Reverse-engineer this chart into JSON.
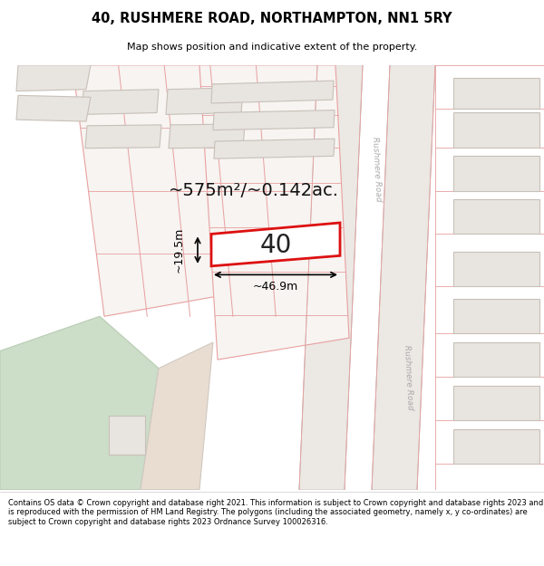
{
  "title": "40, RUSHMERE ROAD, NORTHAMPTON, NN1 5RY",
  "subtitle": "Map shows position and indicative extent of the property.",
  "footer": "Contains OS data © Crown copyright and database right 2021. This information is subject to Crown copyright and database rights 2023 and is reproduced with the permission of HM Land Registry. The polygons (including the associated geometry, namely x, y co-ordinates) are subject to Crown copyright and database rights 2023 Ordnance Survey 100026316.",
  "area_text": "~575m²/~0.142ac.",
  "number_text": "40",
  "dim_width": "~46.9m",
  "dim_height": "~19.5m",
  "map_bg": "#f7f4f1",
  "building_fill": "#e8e4e0",
  "building_stroke": "#c8c0b8",
  "prop_fill": "#ffffff",
  "prop_stroke": "#dd1111",
  "lot_stroke": "#e8a0a0",
  "road_fill": "#f0ecec",
  "road_stroke": "#d8d0c8",
  "road_label": "#aaaaaa",
  "green_fill": "#ccddc8",
  "tan_fill": "#e8ddd0",
  "tan_stroke": "#d0c8c0"
}
